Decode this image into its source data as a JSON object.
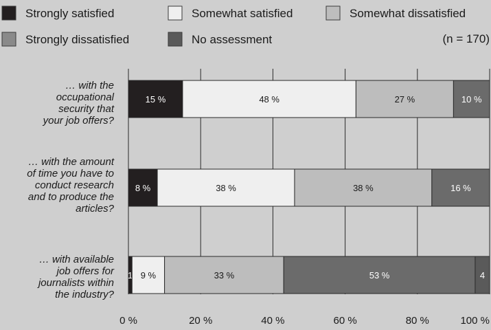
{
  "chart_data": {
    "type": "bar",
    "orientation": "horizontal",
    "stacked": true,
    "note": "(n = 170)",
    "categories": [
      "… with the occupational security that your job offers?",
      "… with the amount of time you have to conduct research and to produce the articles?",
      "… with available job offers for journalists within the industry?"
    ],
    "category_lines": [
      [
        "… with the",
        "occupational",
        "security that",
        "your job offers?"
      ],
      [
        "… with the amount",
        "of time you have to",
        "conduct research",
        "and to produce the",
        "articles?"
      ],
      [
        "… with available",
        "job offers for",
        "journalists within",
        "the industry?"
      ]
    ],
    "series": [
      {
        "name": "Strongly satisfied",
        "color": "#231f20",
        "text_color": "#ffffff",
        "values": [
          15,
          8,
          1
        ],
        "labels": [
          "15 %",
          "8 %",
          "1"
        ]
      },
      {
        "name": "Somewhat satisfied",
        "color": "#efefef",
        "text_color": "#1a1a1a",
        "values": [
          48,
          38,
          9
        ],
        "labels": [
          "48 %",
          "38 %",
          "9 %"
        ]
      },
      {
        "name": "Somewhat dissatisfied",
        "color": "#bdbdbd",
        "text_color": "#1a1a1a",
        "values": [
          27,
          38,
          33
        ],
        "labels": [
          "27 %",
          "38 %",
          "33 %"
        ]
      },
      {
        "name": "Strongly dissatisfied",
        "color": "#6b6b6b",
        "text_color": "#ffffff",
        "values": [
          10,
          16,
          53
        ],
        "labels": [
          "10 %",
          "16 %",
          "53 %"
        ]
      },
      {
        "name": "No assessment",
        "color": "#5a5a5a",
        "text_color": "#ffffff",
        "values": [
          0,
          0,
          4
        ],
        "labels": [
          "",
          "",
          "4"
        ]
      }
    ],
    "legend": {
      "position": "top",
      "items": [
        {
          "name": "Strongly satisfied",
          "color": "#231f20"
        },
        {
          "name": "Somewhat satisfied",
          "color": "#efefef"
        },
        {
          "name": "Somewhat dissatisfied",
          "color": "#bdbdbd"
        },
        {
          "name": "Strongly dissatisfied",
          "color": "#8a8a8a"
        },
        {
          "name": "No assessment",
          "color": "#5a5a5a"
        }
      ]
    },
    "x_ticks": [
      0,
      20,
      40,
      60,
      80,
      100
    ],
    "x_tick_labels": [
      "0 %",
      "20 %",
      "40 %",
      "60 %",
      "80 %",
      "100 %"
    ],
    "xlim": [
      0,
      100
    ],
    "grid": true
  }
}
